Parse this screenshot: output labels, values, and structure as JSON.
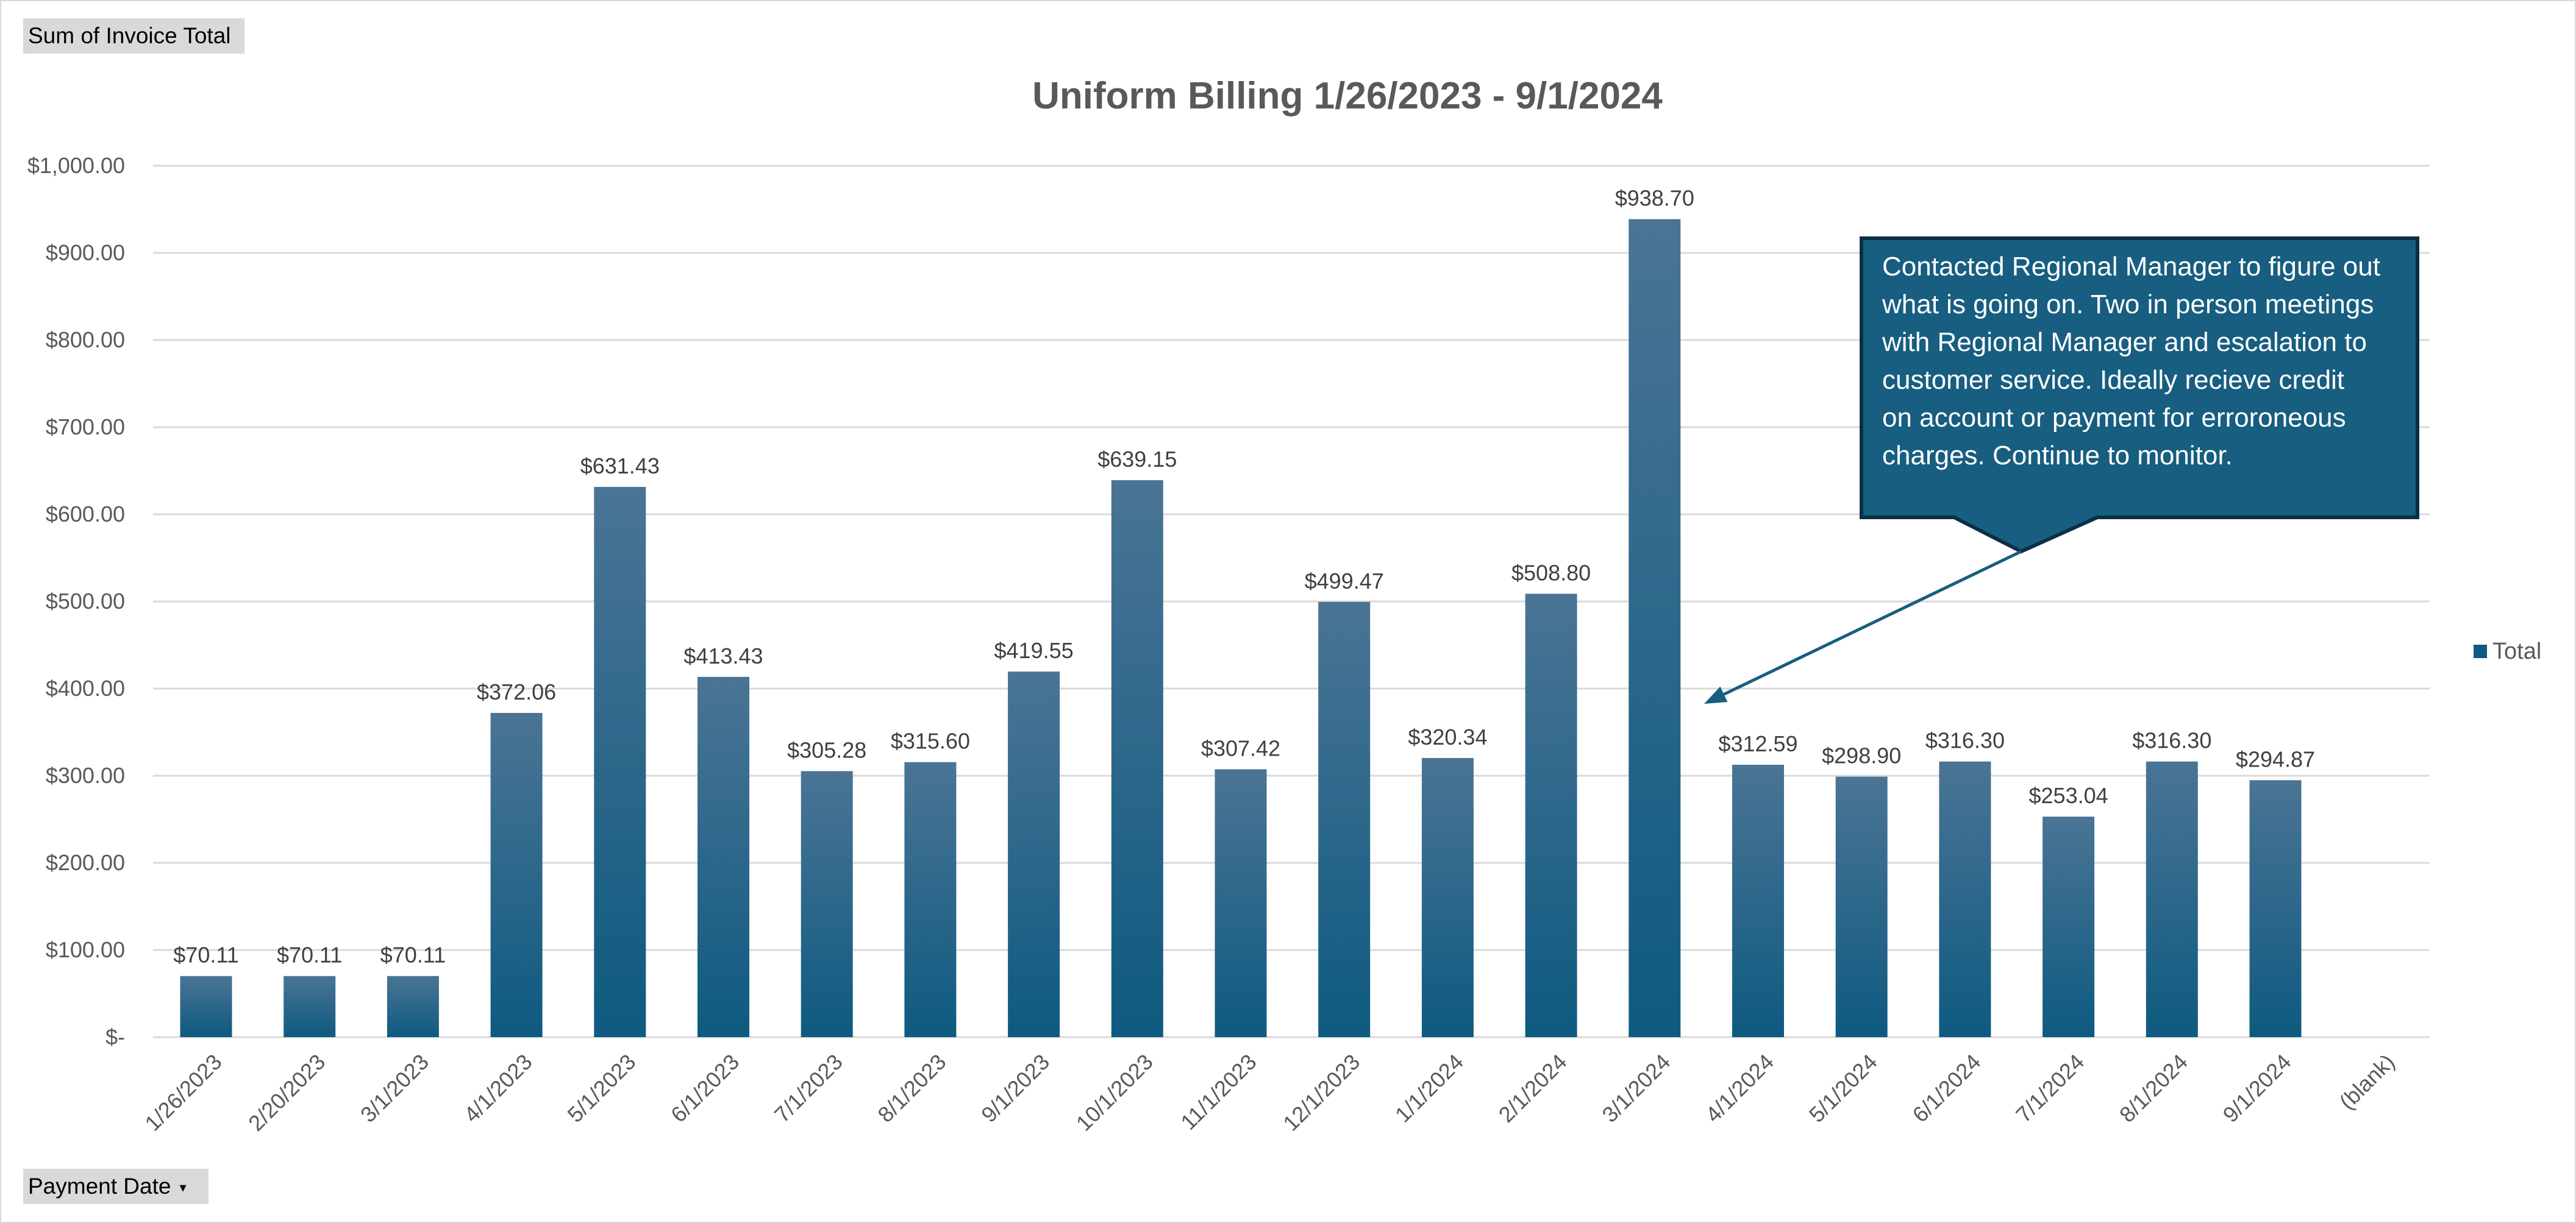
{
  "value_field_button": "Sum of Invoice Total",
  "axis_field_button": "Payment Date",
  "dropdown_glyph": "▾",
  "colors": {
    "bar_top": "#4A7495",
    "bar_bottom": "#0E5A80",
    "callout_fill": "#175E80",
    "callout_border": "#0B2F45",
    "arrow": "#175E80"
  },
  "chart_data": {
    "type": "bar",
    "title": "Uniform Billing 1/26/2023 - 9/1/2024",
    "categories": [
      "1/26/2023",
      "2/20/2023",
      "3/1/2023",
      "4/1/2023",
      "5/1/2023",
      "6/1/2023",
      "7/1/2023",
      "8/1/2023",
      "9/1/2023",
      "10/1/2023",
      "11/1/2023",
      "12/1/2023",
      "1/1/2024",
      "2/1/2024",
      "3/1/2024",
      "4/1/2024",
      "5/1/2024",
      "6/1/2024",
      "7/1/2024",
      "8/1/2024",
      "9/1/2024",
      "(blank)"
    ],
    "series": [
      {
        "name": "Total",
        "values": [
          70.11,
          70.11,
          70.11,
          372.06,
          631.43,
          413.43,
          305.28,
          315.6,
          419.55,
          639.15,
          307.42,
          499.47,
          320.34,
          508.8,
          938.7,
          312.59,
          298.9,
          316.3,
          253.04,
          316.3,
          294.87,
          null
        ],
        "data_labels": [
          "$70.11",
          "$70.11",
          "$70.11",
          "$372.06",
          "$631.43",
          "$413.43",
          "$305.28",
          "$315.60",
          "$419.55",
          "$639.15",
          "$307.42",
          "$499.47",
          "$320.34",
          "$508.80",
          "$938.70",
          "$312.59",
          "$298.90",
          "$316.30",
          "$253.04",
          "$316.30",
          "$294.87",
          ""
        ]
      }
    ],
    "ylim": [
      0,
      1000
    ],
    "yticks": [
      0,
      100,
      200,
      300,
      400,
      500,
      600,
      700,
      800,
      900,
      1000
    ],
    "ytick_labels": [
      "$-",
      "$100.00",
      "$200.00",
      "$300.00",
      "$400.00",
      "$500.00",
      "$600.00",
      "$700.00",
      "$800.00",
      "$900.00",
      "$1,000.00"
    ],
    "grid": true,
    "legend": {
      "position": "right",
      "entries": [
        "Total"
      ]
    },
    "annotation": {
      "lines": [
        "Contacted Regional Manager to figure out",
        "what is going on.  Two in person meetings",
        "with Regional Manager and escalation to",
        "customer service.  Ideally recieve credit",
        "on account or payment for erroroneous",
        "charges.  Continue to monitor."
      ],
      "points_to_category": "4/1/2024"
    }
  }
}
